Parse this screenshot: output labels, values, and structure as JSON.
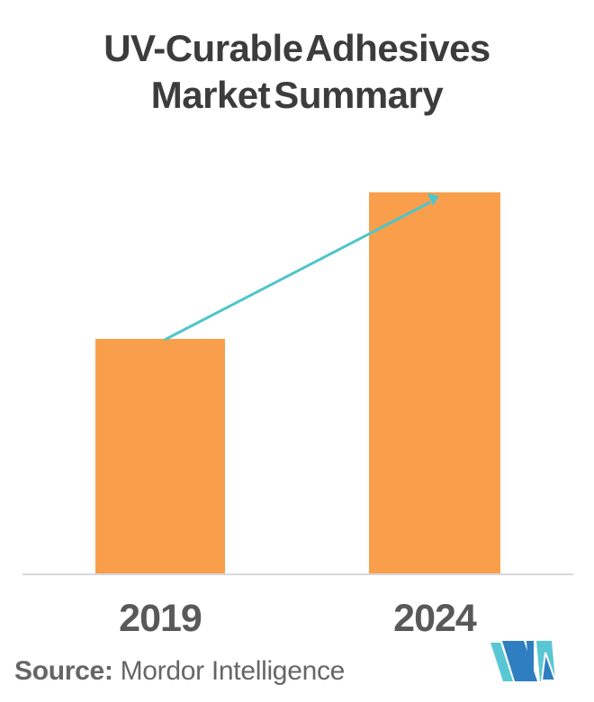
{
  "page": {
    "background_color": "#ffffff"
  },
  "title": {
    "lines": [
      "UV-Curable Adhesives",
      "Market Summary"
    ],
    "color": "#3c3c3c"
  },
  "chart_data": {
    "type": "bar",
    "title": "UV-Curable Adhesives Market Summary",
    "categories": [
      "2019",
      "2024"
    ],
    "values": [
      0.616,
      1.0
    ],
    "note": "No numeric value axis is shown; values are relative bar heights with the 2024 bar normalized to 1.0 (2019 is about 62% of 2024).",
    "xlabel": "",
    "ylabel": "",
    "legend": false,
    "grid": false,
    "bar_color": "#F99F4C",
    "axis_line_color": "#D8D8DC",
    "tick_label_color": "#595959",
    "trend_arrow": {
      "from_category": "2019",
      "to_category": "2024",
      "direction": "up",
      "color": "#4FC5CB"
    }
  },
  "footer": {
    "source_label": "Source:",
    "source_value": "Mordor Intelligence",
    "text_color": "#666666",
    "logo": {
      "name": "Mordor Intelligence MI monogram",
      "teal": "#58C7D3",
      "blue": "#2F7EC1"
    }
  }
}
